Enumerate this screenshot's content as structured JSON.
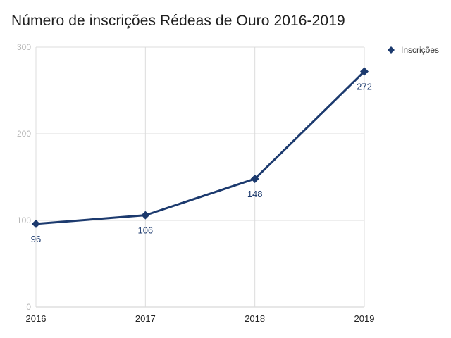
{
  "chart_data": {
    "type": "line",
    "title": "Número de inscrições Rédeas de Ouro 2016-2019",
    "categories": [
      "2016",
      "2017",
      "2018",
      "2019"
    ],
    "series": [
      {
        "name": "Inscrições",
        "values": [
          96,
          106,
          148,
          272
        ],
        "color": "#1c3a6e"
      }
    ],
    "data_labels": [
      "96",
      "106",
      "148",
      "272"
    ],
    "ylim": [
      0,
      300
    ],
    "yticks": [
      0,
      100,
      200,
      300
    ],
    "grid": true,
    "legend_position": "top-right",
    "marker": "diamond"
  }
}
